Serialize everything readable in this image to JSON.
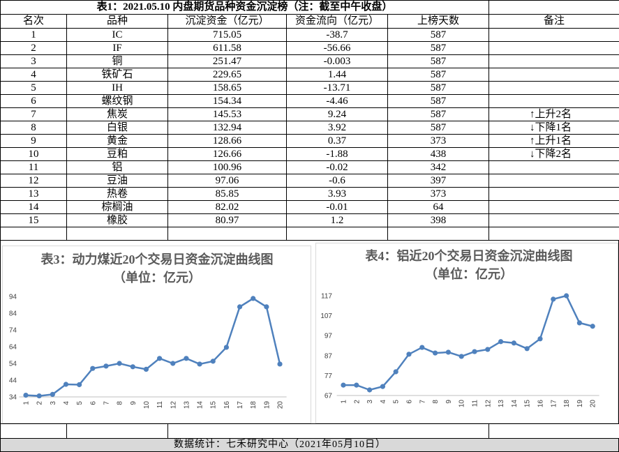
{
  "table": {
    "title": "表1：2021.05.10 内盘期货品种资金沉淀榜（注：截至中午收盘）",
    "header": [
      "名次",
      "品种",
      "沉淀资金（亿元）",
      "资金流向（亿元）",
      "上榜天数",
      "备注"
    ],
    "rows": [
      {
        "cells": [
          "1",
          "IC",
          "715.05",
          "-38.7",
          "587"
        ]
      },
      {
        "cells": [
          "2",
          "IF",
          "611.58",
          "-56.66",
          "587"
        ]
      },
      {
        "cells": [
          "3",
          "铜",
          "251.47",
          "-0.003",
          "587"
        ]
      },
      {
        "cells": [
          "4",
          "铁矿石",
          "229.65",
          "1.44",
          "587"
        ]
      },
      {
        "cells": [
          "5",
          "IH",
          "158.65",
          "-13.71",
          "587"
        ]
      },
      {
        "cells": [
          "6",
          "螺纹钢",
          "154.34",
          "-4.46",
          "587"
        ]
      },
      {
        "cells": [
          "7",
          "焦炭",
          "145.53",
          "9.24",
          "587"
        ],
        "note": "↑上升2名"
      },
      {
        "cells": [
          "8",
          "白银",
          "132.94",
          "3.92",
          "587"
        ],
        "note": "↓下降1名"
      },
      {
        "cells": [
          "9",
          "黄金",
          "128.66",
          "0.37",
          "373"
        ],
        "note": "↑上升1名"
      },
      {
        "cells": [
          "10",
          "豆粕",
          "126.66",
          "-1.88",
          "438"
        ],
        "note": "↓下降2名"
      },
      {
        "cells": [
          "11",
          "铝",
          "100.96",
          "-0.02",
          "342"
        ]
      },
      {
        "cells": [
          "12",
          "豆油",
          "97.06",
          "-0.6",
          "397"
        ]
      },
      {
        "cells": [
          "13",
          "热卷",
          "85.85",
          "3.93",
          "373"
        ]
      },
      {
        "cells": [
          "14",
          "棕榈油",
          "82.02",
          "-0.01",
          "64"
        ]
      },
      {
        "cells": [
          "15",
          "橡胶",
          "80.97",
          "1.2",
          "398"
        ]
      }
    ]
  },
  "chart_data": [
    {
      "type": "line",
      "title": "表3：动力煤近20个交易日资金沉淀曲线图（单位：亿元）",
      "categories": [
        "1",
        "2",
        "3",
        "4",
        "5",
        "6",
        "7",
        "8",
        "9",
        "10",
        "11",
        "12",
        "13",
        "14",
        "15",
        "16",
        "17",
        "18",
        "19",
        "20"
      ],
      "values": [
        35,
        34.6,
        35.5,
        41.5,
        41.3,
        51,
        52.4,
        54,
        52,
        50.5,
        57,
        54,
        57,
        53.6,
        55.3,
        63.6,
        87.8,
        92.8,
        87.8,
        53.6
      ],
      "color": "#4f81bd",
      "ylim": [
        34,
        94
      ],
      "yticks": [
        34,
        44,
        54,
        64,
        74,
        84,
        94
      ]
    },
    {
      "type": "line",
      "title": "表4：铝近20个交易日资金沉淀曲线图（单位：亿元）",
      "categories": [
        "1",
        "2",
        "3",
        "4",
        "5",
        "6",
        "7",
        "8",
        "9",
        "10",
        "11",
        "12",
        "13",
        "14",
        "15",
        "16",
        "17",
        "18",
        "19",
        "20"
      ],
      "values": [
        72.2,
        72.2,
        69.8,
        71.5,
        78.9,
        87.7,
        91.1,
        88.3,
        88.7,
        86.6,
        89,
        90.1,
        94,
        93.3,
        90.5,
        95.4,
        115.3,
        117,
        103.4,
        101.7
      ],
      "color": "#4f81bd",
      "ylim": [
        67,
        117
      ],
      "yticks": [
        67,
        77,
        87,
        97,
        107,
        117
      ]
    }
  ],
  "footer": "数据统计：七禾研究中心（2021年05月10日）"
}
